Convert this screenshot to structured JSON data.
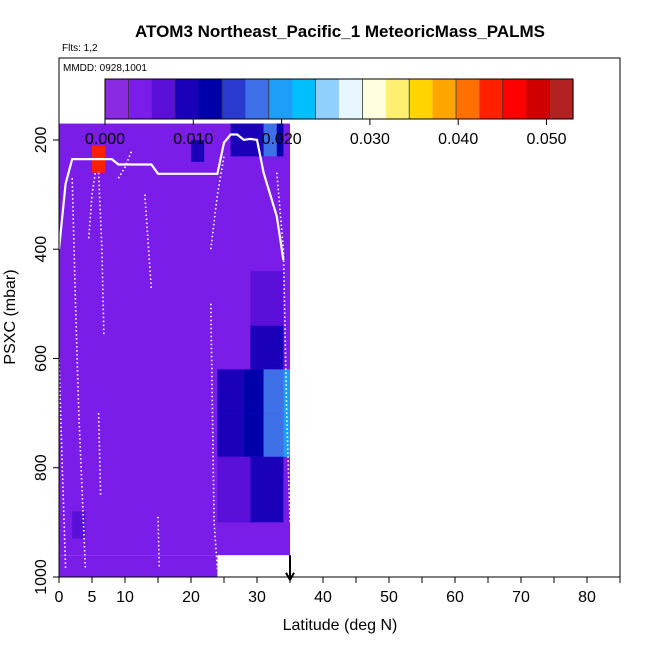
{
  "chart_data": {
    "type": "heatmap",
    "title": "ATOM3 Northeast_Pacific_1 MeteoricMass_PALMS",
    "flights_label": "Flts: 1,2",
    "dates_label": "MMDD: 0928,1001",
    "xlabel": "Latitude (deg N)",
    "ylabel": "PSXC (mbar)",
    "xlim": [
      0,
      85
    ],
    "ylim": [
      1000,
      50
    ],
    "x_ticks": [
      0,
      5,
      10,
      20,
      30,
      40,
      50,
      60,
      70,
      80
    ],
    "y_ticks": [
      200,
      400,
      600,
      800,
      1000
    ],
    "colorbar": {
      "min": 0.0,
      "max": 0.053,
      "tick_values": [
        0.0,
        0.01,
        0.02,
        0.03,
        0.04,
        0.05
      ],
      "tick_labels": [
        "0.000",
        "0.010",
        "0.020",
        "0.030",
        "0.040",
        "0.050"
      ],
      "colors": [
        "#8a2be2",
        "#7a1de8",
        "#5a10d8",
        "#1a00b8",
        "#0000aa",
        "#2a3ad0",
        "#3e70e8",
        "#1e9ef8",
        "#00bfff",
        "#90d0ff",
        "#e8f6ff",
        "#ffffe0",
        "#fff070",
        "#ffd400",
        "#ffa500",
        "#ff7000",
        "#ff2000",
        "#ff0000",
        "#d00000",
        "#b22222"
      ]
    },
    "cells": [
      {
        "lat": [
          0,
          35
        ],
        "p": [
          170,
          960
        ],
        "value": 0.003
      },
      {
        "lat": [
          0,
          10
        ],
        "p": [
          960,
          1000
        ],
        "value": 0.003
      },
      {
        "lat": [
          10,
          24
        ],
        "p": [
          960,
          1000
        ],
        "value": 0.003
      },
      {
        "lat": [
          1,
          5
        ],
        "p": [
          210,
          245
        ],
        "value": 0.005
      },
      {
        "lat": [
          5,
          7
        ],
        "p": [
          210,
          260
        ],
        "value": 0.045
      },
      {
        "lat": [
          2,
          4
        ],
        "p": [
          880,
          930
        ],
        "value": 0.006
      },
      {
        "lat": [
          15,
          25
        ],
        "p": [
          700,
          800
        ],
        "value": 0.005
      },
      {
        "lat": [
          25,
          29
        ],
        "p": [
          440,
          540
        ],
        "value": 0.004
      },
      {
        "lat": [
          29,
          34
        ],
        "p": [
          440,
          540
        ],
        "value": 0.006
      },
      {
        "lat": [
          25,
          29
        ],
        "p": [
          540,
          620
        ],
        "value": 0.005
      },
      {
        "lat": [
          29,
          34
        ],
        "p": [
          540,
          620
        ],
        "value": 0.008
      },
      {
        "lat": [
          24,
          28
        ],
        "p": [
          620,
          700
        ],
        "value": 0.009
      },
      {
        "lat": [
          28,
          31
        ],
        "p": [
          620,
          700
        ],
        "value": 0.011
      },
      {
        "lat": [
          31,
          34
        ],
        "p": [
          620,
          700
        ],
        "value": 0.017
      },
      {
        "lat": [
          34,
          35
        ],
        "p": [
          620,
          700
        ],
        "value": 0.02
      },
      {
        "lat": [
          24,
          28
        ],
        "p": [
          700,
          780
        ],
        "value": 0.009
      },
      {
        "lat": [
          28,
          31
        ],
        "p": [
          700,
          780
        ],
        "value": 0.012
      },
      {
        "lat": [
          31,
          34
        ],
        "p": [
          700,
          780
        ],
        "value": 0.016
      },
      {
        "lat": [
          34,
          35
        ],
        "p": [
          700,
          780
        ],
        "value": 0.021
      },
      {
        "lat": [
          24,
          29
        ],
        "p": [
          780,
          860
        ],
        "value": 0.007
      },
      {
        "lat": [
          29,
          34
        ],
        "p": [
          780,
          860
        ],
        "value": 0.01
      },
      {
        "lat": [
          24,
          29
        ],
        "p": [
          860,
          900
        ],
        "value": 0.006
      },
      {
        "lat": [
          29,
          34
        ],
        "p": [
          860,
          900
        ],
        "value": 0.008
      },
      {
        "lat": [
          26,
          31
        ],
        "p": [
          170,
          230
        ],
        "value": 0.01
      },
      {
        "lat": [
          31,
          33
        ],
        "p": [
          170,
          230
        ],
        "value": 0.018
      },
      {
        "lat": [
          33,
          34
        ],
        "p": [
          170,
          230
        ],
        "value": 0.012
      },
      {
        "lat": [
          20,
          22
        ],
        "p": [
          200,
          240
        ],
        "value": 0.009
      }
    ],
    "tropopause_lines": [
      {
        "style": "solid",
        "points": [
          [
            0,
            400
          ],
          [
            1,
            280
          ],
          [
            2,
            235
          ],
          [
            8,
            235
          ],
          [
            9,
            245
          ],
          [
            14,
            245
          ],
          [
            15,
            262
          ],
          [
            24,
            262
          ],
          [
            25,
            205
          ],
          [
            26,
            190
          ],
          [
            27,
            190
          ],
          [
            28,
            200
          ],
          [
            29,
            198
          ],
          [
            30,
            200
          ],
          [
            31,
            260
          ],
          [
            33,
            340
          ],
          [
            34,
            420
          ]
        ]
      }
    ],
    "flight_tracks": [
      {
        "points": [
          [
            0,
            600
          ],
          [
            0.5,
            800
          ],
          [
            1,
            985
          ]
        ]
      },
      {
        "points": [
          [
            2,
            270
          ],
          [
            2.5,
            500
          ],
          [
            3,
            700
          ],
          [
            4,
            985
          ]
        ]
      },
      {
        "points": [
          [
            4.5,
            380
          ],
          [
            5,
            300
          ],
          [
            5.5,
            260
          ]
        ]
      },
      {
        "points": [
          [
            6,
            260
          ],
          [
            6.5,
            400
          ],
          [
            6.8,
            560
          ]
        ]
      },
      {
        "points": [
          [
            6,
            700
          ],
          [
            6.3,
            850
          ]
        ]
      },
      {
        "points": [
          [
            9,
            270
          ],
          [
            10,
            250
          ],
          [
            11,
            220
          ]
        ]
      },
      {
        "points": [
          [
            13,
            300
          ],
          [
            14,
            475
          ]
        ]
      },
      {
        "points": [
          [
            15,
            890
          ],
          [
            15.2,
            985
          ]
        ]
      },
      {
        "points": [
          [
            23,
            400
          ],
          [
            24,
            300
          ],
          [
            25,
            230
          ]
        ]
      },
      {
        "points": [
          [
            23,
            500
          ],
          [
            23.5,
            900
          ],
          [
            24,
            985
          ]
        ]
      },
      {
        "points": [
          [
            33,
            260
          ],
          [
            34,
            400
          ],
          [
            34.5,
            700
          ],
          [
            35,
            900
          ]
        ]
      }
    ],
    "arrow": {
      "lat": 35,
      "p_from": 960,
      "p_to": 1005
    }
  }
}
